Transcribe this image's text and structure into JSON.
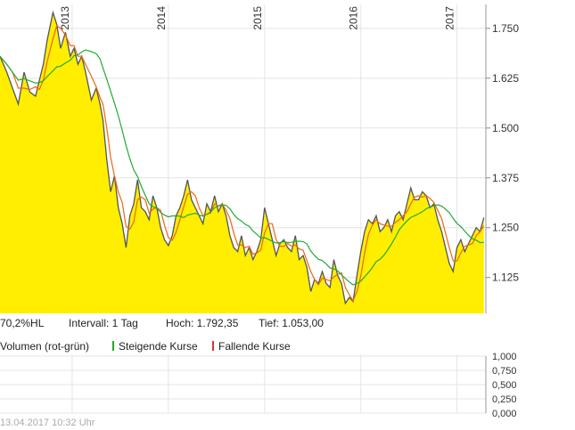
{
  "chart_data": {
    "type": "area",
    "x_ticks": [
      "2013",
      "2014",
      "2015",
      "2016",
      "2017"
    ],
    "y_ticks": [
      "1.750",
      "1.625",
      "1.500",
      "1.375",
      "1.250",
      "1.125"
    ],
    "y_tick_values": [
      1750,
      1625,
      1500,
      1375,
      1250,
      1125
    ],
    "ylim": [
      1035,
      1810
    ],
    "xlim": [
      2012.25,
      2017.3
    ],
    "grid": true,
    "series": [
      {
        "x": [
          2012.25,
          2012.32,
          2012.38,
          2012.44,
          2012.5,
          2012.56,
          2012.62,
          2012.66,
          2012.7,
          2012.74,
          2012.8,
          2012.84,
          2012.88,
          2012.93,
          2012.98,
          2013.02,
          2013.06,
          2013.1,
          2013.14,
          2013.2,
          2013.25,
          2013.29,
          2013.32,
          2013.36,
          2013.4,
          2013.44,
          2013.48,
          2013.52,
          2013.56,
          2013.6,
          2013.64,
          2013.68,
          2013.72,
          2013.76,
          2013.8,
          2013.84,
          2013.88,
          2013.92,
          2013.96,
          2014.0,
          2014.04,
          2014.08,
          2014.12,
          2014.16,
          2014.2,
          2014.24,
          2014.28,
          2014.32,
          2014.36,
          2014.4,
          2014.44,
          2014.48,
          2014.52,
          2014.56,
          2014.6,
          2014.64,
          2014.68,
          2014.72,
          2014.76,
          2014.8,
          2014.84,
          2014.88,
          2014.92,
          2014.96,
          2015.0,
          2015.04,
          2015.08,
          2015.12,
          2015.16,
          2015.2,
          2015.24,
          2015.28,
          2015.32,
          2015.36,
          2015.4,
          2015.44,
          2015.48,
          2015.52,
          2015.56,
          2015.6,
          2015.64,
          2015.68,
          2015.72,
          2015.76,
          2015.8,
          2015.84,
          2015.88,
          2015.92,
          2015.96,
          2016.0,
          2016.04,
          2016.08,
          2016.12,
          2016.16,
          2016.2,
          2016.24,
          2016.28,
          2016.32,
          2016.36,
          2016.4,
          2016.44,
          2016.48,
          2016.52,
          2016.56,
          2016.6,
          2016.64,
          2016.68,
          2016.72,
          2016.76,
          2016.8,
          2016.84,
          2016.88,
          2016.92,
          2016.96,
          2017.0,
          2017.04,
          2017.08,
          2017.12,
          2017.16,
          2017.2,
          2017.24,
          2017.28
        ],
        "y": [
          1680,
          1640,
          1600,
          1560,
          1640,
          1590,
          1580,
          1620,
          1660,
          1720,
          1790,
          1760,
          1700,
          1740,
          1680,
          1700,
          1660,
          1680,
          1640,
          1570,
          1600,
          1560,
          1520,
          1420,
          1340,
          1380,
          1300,
          1260,
          1200,
          1280,
          1310,
          1370,
          1300,
          1290,
          1270,
          1330,
          1300,
          1250,
          1220,
          1205,
          1230,
          1280,
          1300,
          1330,
          1370,
          1320,
          1300,
          1280,
          1260,
          1310,
          1290,
          1330,
          1290,
          1310,
          1280,
          1230,
          1200,
          1190,
          1230,
          1180,
          1200,
          1170,
          1190,
          1220,
          1300,
          1260,
          1220,
          1180,
          1210,
          1220,
          1200,
          1190,
          1230,
          1170,
          1180,
          1150,
          1090,
          1120,
          1110,
          1140,
          1110,
          1100,
          1170,
          1130,
          1110,
          1060,
          1075,
          1065,
          1130,
          1190,
          1240,
          1270,
          1260,
          1280,
          1240,
          1250,
          1270,
          1240,
          1280,
          1290,
          1270,
          1310,
          1350,
          1320,
          1320,
          1340,
          1330,
          1300,
          1310,
          1270,
          1240,
          1200,
          1160,
          1140,
          1200,
          1220,
          1190,
          1210,
          1230,
          1250,
          1240,
          1275
        ]
      }
    ]
  },
  "info": {
    "performance": "70,2%HL",
    "interval": "Intervall: 1 Tag",
    "high": "Hoch:  1.792,35",
    "low": "Tief:  1.053,00"
  },
  "volume_panel": {
    "label": "Volumen (rot-grün)",
    "rising": "Steigende Kurse",
    "falling": "Fallende Kurse",
    "y_ticks": [
      "1,000",
      "0,750",
      "0,500",
      "0,250",
      "0,000"
    ],
    "y_tick_values": [
      1,
      0.75,
      0.5,
      0.25,
      0
    ],
    "rising_color": "#22aa22",
    "falling_color": "#dd3333"
  },
  "footer": {
    "timestamp": "13.04.2017 10:32 Uhr"
  },
  "colors": {
    "fill": "#ffee00",
    "price_line": "#555555",
    "ma_short": "#ee6611",
    "ma_long": "#22aa33",
    "grid": "#e4e4e4"
  }
}
